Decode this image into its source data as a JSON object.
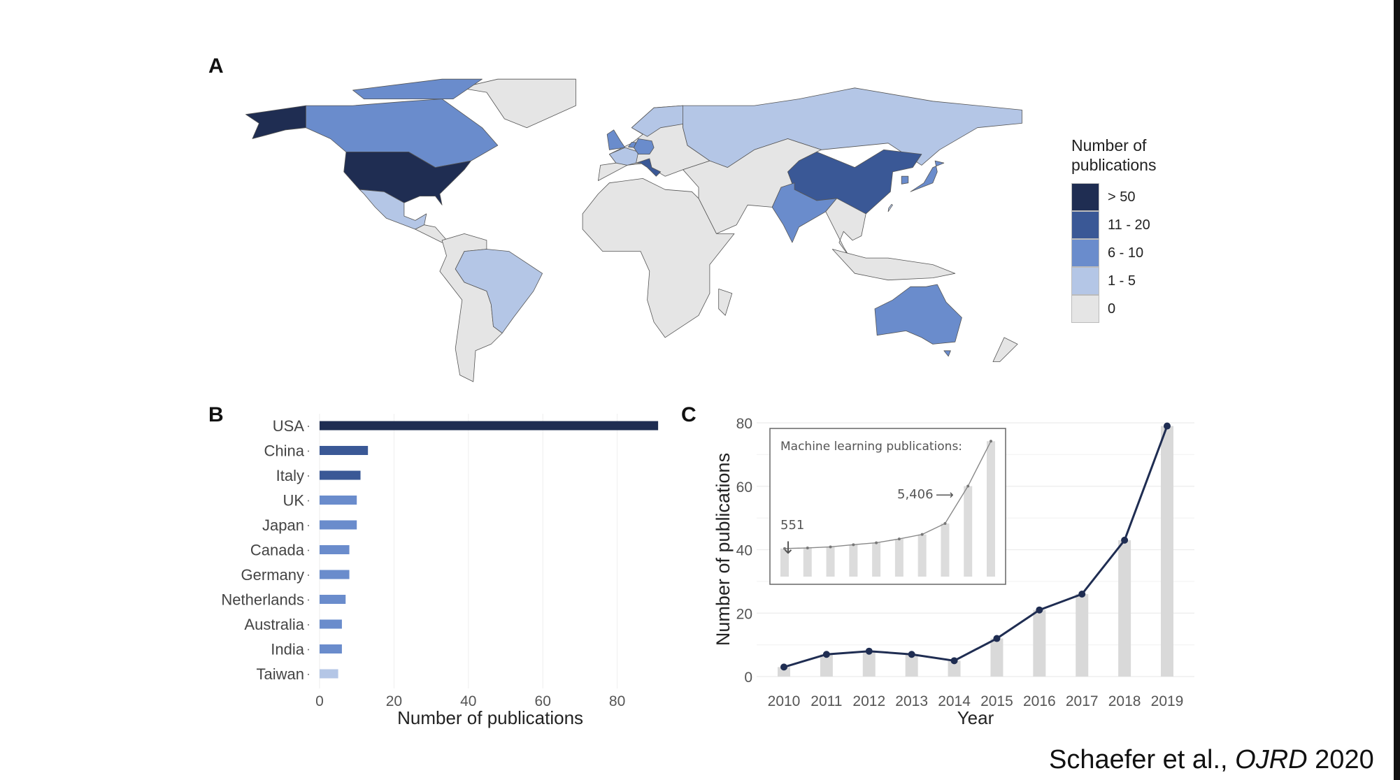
{
  "panel_labels": {
    "a": "A",
    "b": "B",
    "c": "C"
  },
  "legend": {
    "title_line1": "Number of",
    "title_line2": "publications",
    "items": [
      {
        "label": "> 50",
        "color": "#1f2d52"
      },
      {
        "label": "11 - 20",
        "color": "#3a5896"
      },
      {
        "label": "6 - 10",
        "color": "#6a8ccc"
      },
      {
        "label": "1 - 5",
        "color": "#b4c6e6"
      },
      {
        "label": "0",
        "color": "#e5e5e5"
      }
    ]
  },
  "map_data": {
    "type": "choropleth",
    "bins": [
      "> 50",
      "11 - 20",
      "6 - 10",
      "1 - 5",
      "0"
    ],
    "countries": {
      "USA": "> 50",
      "China": "11 - 20",
      "Italy": "11 - 20",
      "UK": "6 - 10",
      "Japan": "6 - 10",
      "Canada": "6 - 10",
      "Germany": "6 - 10",
      "Netherlands": "6 - 10",
      "Australia": "6 - 10",
      "India": "6 - 10",
      "Taiwan": "1 - 5",
      "Mexico": "1 - 5",
      "Brazil": "1 - 5",
      "Russia": "1 - 5",
      "France": "1 - 5",
      "Scandinavia": "1 - 5",
      "South Korea": "6 - 10"
    }
  },
  "chart_data": [
    {
      "type": "bar",
      "orientation": "horizontal",
      "categories": [
        "USA",
        "China",
        "Italy",
        "UK",
        "Japan",
        "Canada",
        "Germany",
        "Netherlands",
        "Australia",
        "India",
        "Taiwan"
      ],
      "values": [
        91,
        13,
        11,
        10,
        10,
        8,
        8,
        7,
        6,
        6,
        5
      ],
      "colors": [
        "#1f2d52",
        "#3a5896",
        "#3a5896",
        "#6a8ccc",
        "#6a8ccc",
        "#6a8ccc",
        "#6a8ccc",
        "#6a8ccc",
        "#6a8ccc",
        "#6a8ccc",
        "#b4c6e6"
      ],
      "xlabel": "Number of publications",
      "ylabel": "",
      "xlim": [
        0,
        92
      ],
      "xticks": [
        "0",
        "20",
        "40",
        "60",
        "80"
      ],
      "grid": true
    },
    {
      "type": "line+bar",
      "categories": [
        "2010",
        "2011",
        "2012",
        "2013",
        "2014",
        "2015",
        "2016",
        "2017",
        "2018",
        "2019"
      ],
      "values": [
        3,
        7,
        8,
        7,
        5,
        12,
        21,
        26,
        43,
        79
      ],
      "xlabel": "Year",
      "ylabel": "Number of publications",
      "ylim": [
        0,
        80
      ],
      "yticks": [
        "0",
        "20",
        "40",
        "60",
        "80"
      ],
      "line_color": "#1f2d52",
      "bar_color": "#d9d9d9",
      "grid": true,
      "inset": {
        "title": "Machine learning publications:",
        "values": [
          551,
          600,
          680,
          850,
          1000,
          1300,
          1650,
          2500,
          5406,
          8900
        ],
        "annotations": [
          {
            "text": "551",
            "arrow": "↓"
          },
          {
            "text": "5,406",
            "arrow": "⟶"
          }
        ]
      }
    }
  ],
  "citation": {
    "authors": "Schaefer et al.,",
    "journal": "OJRD",
    "year": "2020"
  }
}
